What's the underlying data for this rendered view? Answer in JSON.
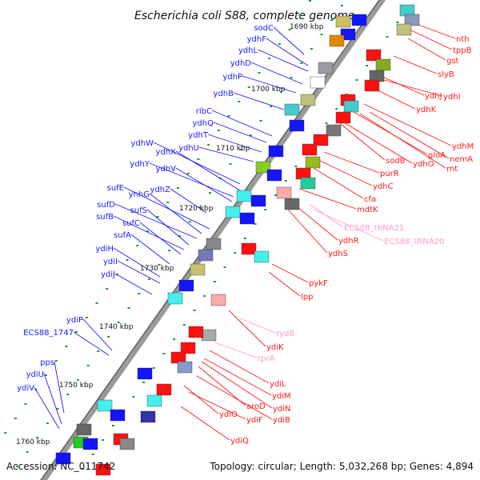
{
  "title": "Escherichia coli S88, complete genome",
  "footer": {
    "accession": "Accession: NC_011742",
    "topology": "Topology: circular; Length: 5,032,268 bp; Genes: 4,894"
  },
  "colors": {
    "left_label": "#1a1aff",
    "right_label": "#ff1a1a",
    "rna_label": "#ff9acb",
    "backbone": "#8a8a8a",
    "tick": "#2a9a2a",
    "left_gene": "#1414ff",
    "right_gene": "#ff1010"
  },
  "kbp_ticks": [
    "1690 kbp",
    "1700 kbp",
    "1710 kbp",
    "1720 kbp",
    "1730 kbp",
    "1740 kbp",
    "1750 kbp",
    "1760 kbp"
  ],
  "left_labels": [
    "sodC",
    "ydhF",
    "ydhL",
    "ydhD",
    "ydhP",
    "ydhB",
    "ribC",
    "ydhQ",
    "ydhT",
    "ydhU",
    "ydhW",
    "ydhX",
    "ydhY",
    "ydhV",
    "sufE",
    "ynhG",
    "ydhZ",
    "sufD",
    "sufS",
    "sufB",
    "sufC",
    "sufA",
    "ydiH",
    "ydiI",
    "ydiJ",
    "ydiP",
    "ECS88_1747",
    "pps",
    "ydiU",
    "ydiV"
  ],
  "right_labels": [
    "nth",
    "tppB",
    "gst",
    "slyB",
    "ydhJ",
    "ydhI",
    "ydhK",
    "ydhM",
    "gloA",
    "nemA",
    "sodB",
    "ydhO",
    "rnt",
    "purR",
    "ydhC",
    "cfa",
    "mdtK",
    "ydhR",
    "ydhS",
    "pykF",
    "lpp",
    "ydiK",
    "ydiL",
    "ydiM",
    "aroD",
    "ydiN",
    "ydiO",
    "ydiF",
    "ydiB",
    "ydiQ"
  ],
  "rna_labels": [
    "ECS88_tRNA21",
    "ECS88_tRNA20",
    "rydB",
    "rprA"
  ]
}
